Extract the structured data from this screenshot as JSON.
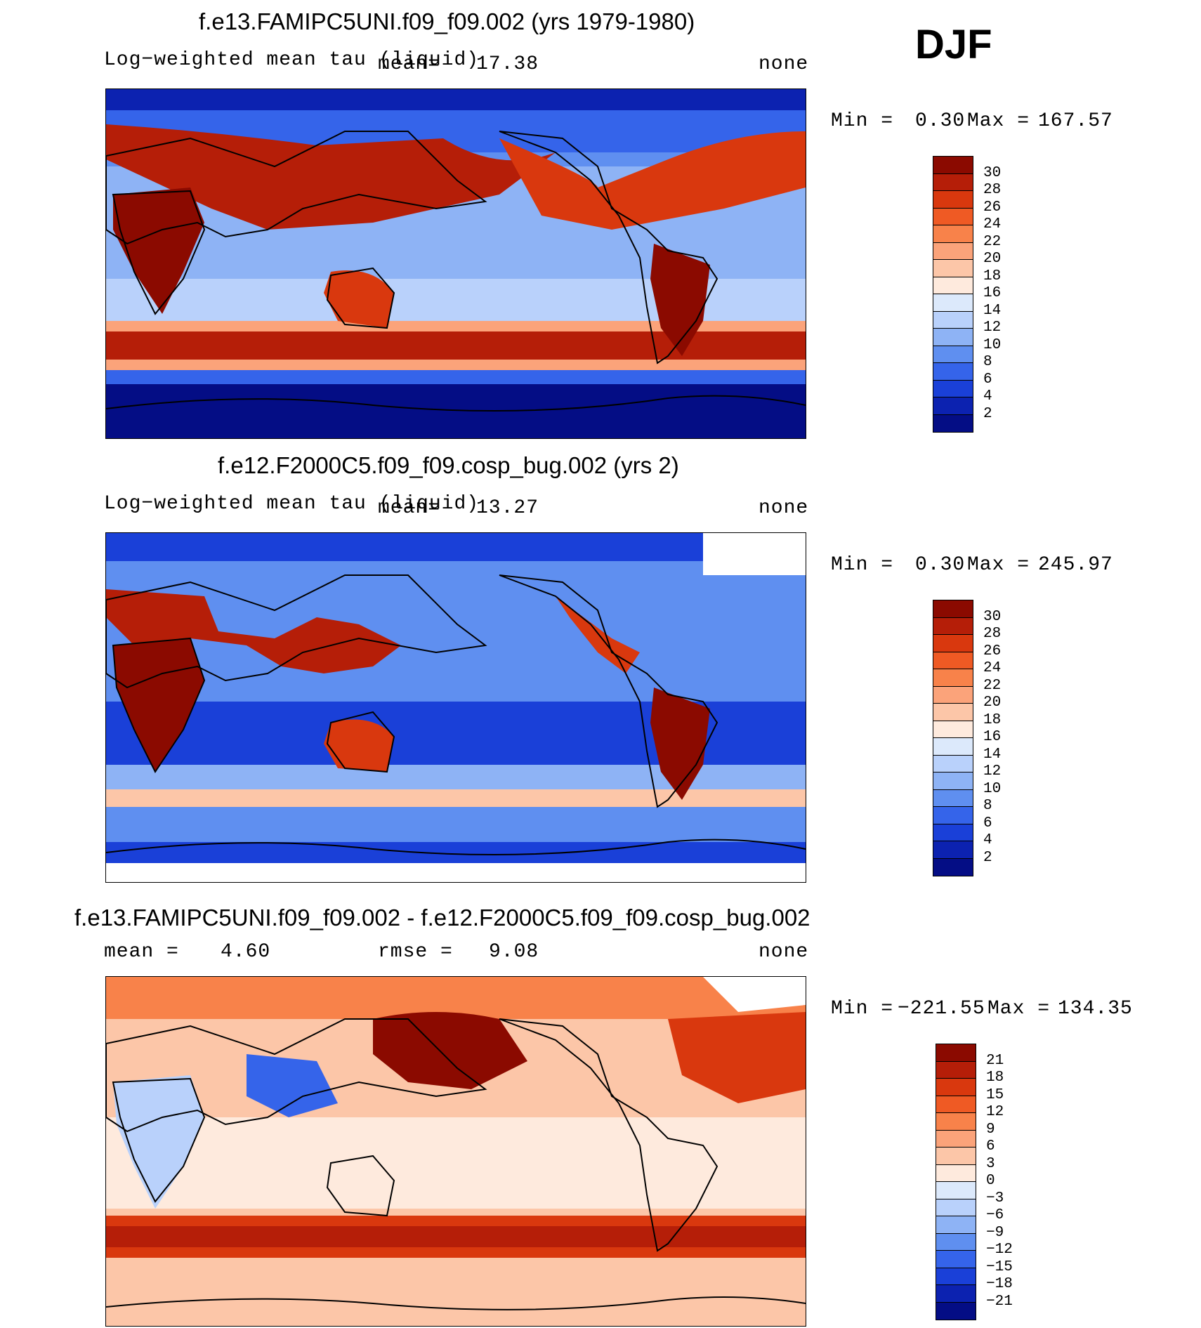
{
  "season": "DJF",
  "panels": [
    {
      "title": "f.e13.FAMIPC5UNI.f09_f09.002 (yrs 1979-1980)",
      "left_label": "Log−weighted mean tau (liquid)",
      "mean_label": "mean=",
      "mean_value": "17.38",
      "units": "none",
      "min_label": "Min =",
      "min_value": "0.30",
      "max_label": "Max =",
      "max_value": "167.57",
      "colorbar": {
        "colors": [
          "#8b0a00",
          "#b51e08",
          "#d9380e",
          "#ef5a24",
          "#f8824a",
          "#fba37a",
          "#fcc6a8",
          "#feeadd",
          "#dce9fb",
          "#b9d1fb",
          "#8eb3f5",
          "#5f8ff0",
          "#3564ea",
          "#1a40d8",
          "#0c22b0",
          "#040d85"
        ],
        "labels": [
          "30",
          "28",
          "26",
          "24",
          "22",
          "20",
          "18",
          "16",
          "14",
          "12",
          "10",
          "8",
          "6",
          "4",
          "2"
        ]
      }
    },
    {
      "title": "f.e12.F2000C5.f09_f09.cosp_bug.002 (yrs 2)",
      "left_label": "Log−weighted mean tau (liquid)",
      "mean_label": "mean=",
      "mean_value": "13.27",
      "units": "none",
      "min_label": "Min =",
      "min_value": "0.30",
      "max_label": "Max =",
      "max_value": "245.97",
      "colorbar": {
        "colors": [
          "#8b0a00",
          "#b51e08",
          "#d9380e",
          "#ef5a24",
          "#f8824a",
          "#fba37a",
          "#fcc6a8",
          "#feeadd",
          "#dce9fb",
          "#b9d1fb",
          "#8eb3f5",
          "#5f8ff0",
          "#3564ea",
          "#1a40d8",
          "#0c22b0",
          "#040d85"
        ],
        "labels": [
          "30",
          "28",
          "26",
          "24",
          "22",
          "20",
          "18",
          "16",
          "14",
          "12",
          "10",
          "8",
          "6",
          "4",
          "2"
        ]
      }
    },
    {
      "title": "f.e13.FAMIPC5UNI.f09_f09.002 - f.e12.F2000C5.f09_f09.cosp_bug.002",
      "mean_label": "mean =",
      "mean_value": "4.60",
      "rmse_label": "rmse =",
      "rmse_value": "9.08",
      "units": "none",
      "min_label": "Min =",
      "min_value": "−221.55",
      "max_label": "Max =",
      "max_value": "134.35",
      "colorbar": {
        "colors": [
          "#8b0a00",
          "#b51e08",
          "#d9380e",
          "#ef5a24",
          "#f8824a",
          "#fba37a",
          "#fcc6a8",
          "#feeadd",
          "#dce9fb",
          "#b9d1fb",
          "#8eb3f5",
          "#5f8ff0",
          "#3564ea",
          "#1a40d8",
          "#0c22b0",
          "#040d85"
        ],
        "labels": [
          "21",
          "18",
          "15",
          "12",
          "9",
          "6",
          "3",
          "0",
          "−3",
          "−6",
          "−9",
          "−12",
          "−15",
          "−18",
          "−21"
        ]
      }
    }
  ]
}
